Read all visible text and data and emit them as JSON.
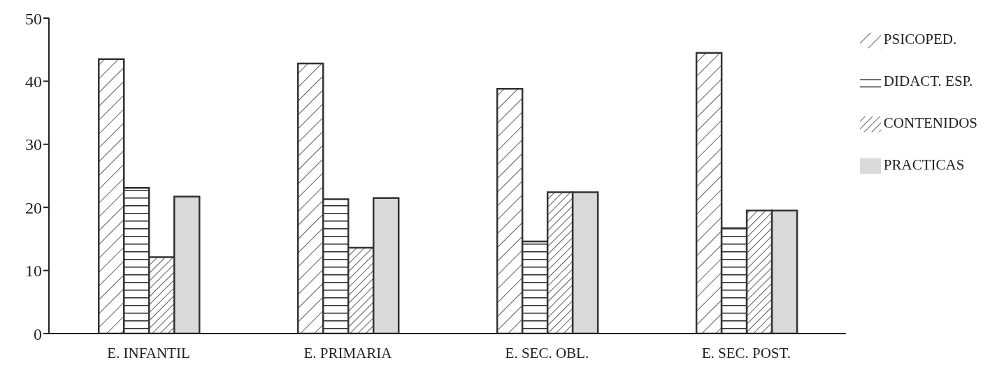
{
  "chart_data": {
    "type": "bar",
    "categories": [
      "E. INFANTIL",
      "E. PRIMARIA",
      "E. SEC. OBL.",
      "E. SEC. POST."
    ],
    "series": [
      {
        "name": "PSICOPED.",
        "color": "#333333",
        "values": [
          43.5,
          42.8,
          38.8,
          44.5
        ]
      },
      {
        "name": "DIDACT. ESP.",
        "color": "#333333",
        "values": [
          23.1,
          21.3,
          14.6,
          16.7
        ]
      },
      {
        "name": "CONTENIDOS",
        "color": "#333333",
        "values": [
          12.1,
          13.6,
          22.4,
          19.5
        ]
      },
      {
        "name": "PRACTICAS",
        "color": "#d9d9d9",
        "values": [
          21.7,
          21.5,
          22.4,
          19.5
        ]
      }
    ],
    "ylim": [
      0,
      50
    ],
    "yticks": [
      0,
      10,
      20,
      30,
      40,
      50
    ],
    "grid": false,
    "legend": "right"
  }
}
